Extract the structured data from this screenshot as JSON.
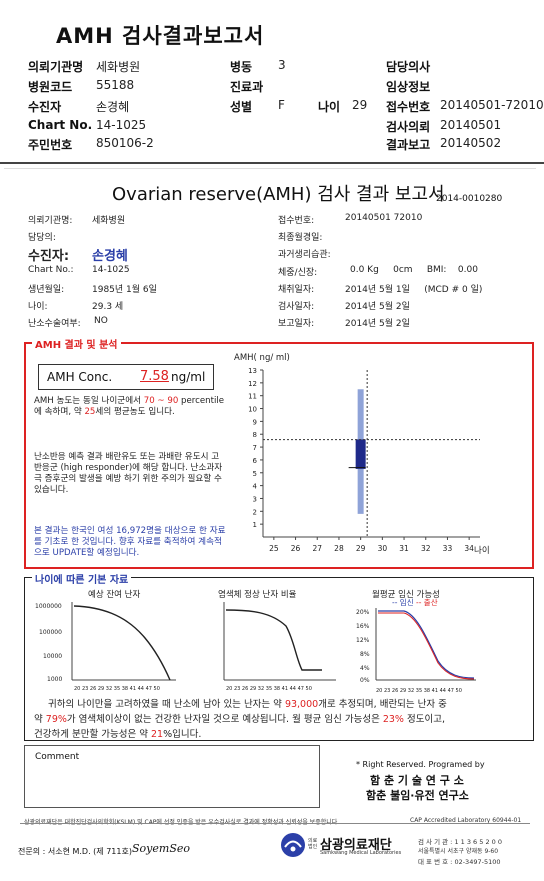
{
  "page_title": "AMH 검사결과보고서",
  "header": {
    "rows": [
      [
        {
          "label": "의뢰기관명",
          "value": "세화병원"
        },
        {
          "label": "병동",
          "value": "3"
        },
        {
          "label": "담당의사",
          "value": ""
        }
      ],
      [
        {
          "label": "병원코드",
          "value": "55188"
        },
        {
          "label": "진료과",
          "value": ""
        },
        {
          "label": "임상정보",
          "value": ""
        }
      ],
      [
        {
          "label": "수진자",
          "value": "손경혜"
        },
        {
          "label": "성별",
          "value": "F"
        },
        {
          "label": "나이",
          "value": "29"
        },
        {
          "label": "접수번호",
          "value": "20140501-72010"
        }
      ],
      [
        {
          "label": "Chart No.",
          "value": "14-1025"
        },
        {
          "label": "검사의뢰",
          "value": "20140501"
        }
      ],
      [
        {
          "label": "주민번호",
          "value": "850106-2"
        },
        {
          "label": "결과보고",
          "value": "20140502"
        }
      ]
    ]
  },
  "report": {
    "title": "Ovarian reserve(AMH) 검사 결과 보고서",
    "number": "2014-0010280",
    "left_info": [
      {
        "label": "의뢰기관명:",
        "value": "세화병원"
      },
      {
        "label": "담당의:",
        "value": ""
      },
      {
        "label": "수진자:",
        "value": "손경혜"
      },
      {
        "label": "Chart No.:",
        "value": "14-1025"
      },
      {
        "label": "생년월일:",
        "value": "1985년 1월 6일"
      },
      {
        "label": "나이:",
        "value": "29.3 세"
      },
      {
        "label": "난소수술여부:",
        "value": "NO"
      }
    ],
    "right_info": [
      {
        "label": "접수번호:",
        "value": "20140501 72010"
      },
      {
        "label": "최종월경일:",
        "value": ""
      },
      {
        "label": "과거생리습관:",
        "value": ""
      },
      {
        "label": "체중/신장:",
        "value": "0.0 Kg     0cm     BMI:    0.00"
      },
      {
        "label": "채취일자:",
        "value": "2014년 5월 1일     (MCD # 0 일)"
      },
      {
        "label": "검사일자:",
        "value": "2014년 5월 2일"
      },
      {
        "label": "보고일자:",
        "value": "2014년 5월 2일"
      }
    ]
  },
  "amh": {
    "section_title": "AMH 결과 및 분석",
    "conc_label": "AMH Conc.",
    "conc_value": "7.58",
    "conc_unit": "ng/ml",
    "p1_a": "AMH 농도는 동일 나이군에서",
    "p1_range": "70 ~ 90",
    "p1_b": "percentile에 속하며, 약",
    "p1_pct": "25",
    "p1_c": "세의 평균농도",
    "p1_d": "입니다.",
    "p2": "난소반응 예측 결과 배란유도 또는 과배란 유도시 고반응군 (high responder)에 해당 합니다. 난소과자극 증후군의 발생을 예방 하기 위한 주의가 필요할 수 있습니다.",
    "p3": "본 결과는 한국인 여성 16,972명을 대상으로 한 자료를 기초로 한 것입니다. 향후 자료를 축적하여 계속적으로 UPDATE할 예정입니다."
  },
  "chart_data": {
    "type": "box",
    "title": "",
    "ylabel": "AMH( ng/ ml)",
    "xlabel": "나이",
    "x_ticks": [
      25,
      26,
      27,
      28,
      29,
      30,
      31,
      32,
      33,
      34
    ],
    "y_ticks": [
      1,
      2,
      3,
      4,
      5,
      6,
      7,
      8,
      9,
      10,
      11,
      12,
      13
    ],
    "xlim": [
      24.5,
      34.5
    ],
    "ylim": [
      0,
      13
    ],
    "grid": false,
    "box": {
      "x": 29,
      "whisker_low": 1.8,
      "q1": 5.3,
      "median": 5.4,
      "q3": 7.6,
      "whisker_high": 11.5
    },
    "reference_value": 7.58,
    "reference_age": 29.3
  },
  "age_section": {
    "title": "나이에 따른 기본 자료",
    "chart1_title": "예상 잔여 난자",
    "chart1_yticks": [
      "1000000",
      "100000",
      "10000",
      "1000"
    ],
    "chart2_title": "염색체 정상 난자 비율",
    "chart3_title": "월평균 임신 가능성",
    "chart3_yticks": [
      "20%",
      "16%",
      "12%",
      "8%",
      "4%",
      "0%"
    ],
    "chart3_legend_a": "-- 임신",
    "chart3_legend_b": "-- 출산",
    "age_axis": "20 23 26 29 32 35 38 41 44 47 50",
    "summary_1a": "귀하의 나이만을 고려하였을 때 난소에 남아 있는 난자는 약",
    "summary_oocytes": "93,000",
    "summary_1b": "개로 추정되며, 배란되는 난자 중",
    "summary_2a": "약",
    "summary_2pct": "79%",
    "summary_2b": "가 염색체이상이 없는 건강한 난자일 것으로 예상됩니다. 월 평균 임신 가능성은",
    "summary_2c": "23%",
    "summary_2d": "정도이고,",
    "summary_3a": "건강하게 분만할 가능성은 약",
    "summary_3b": "21",
    "summary_3c": "%입니다."
  },
  "comment_label": "Comment",
  "rights": {
    "line1": "* Right Reserved. Programed by",
    "line2": "함 춘  기 술  연 구 소",
    "line3": "함춘 불임·유전 연구소"
  },
  "footer": {
    "cert_text": "삼광의료재단은 대한진단검사의학회(KSLM) 및 CAP에 선정 인증을 받은 우수검사실로 결과에 정확성과 신뢰성을 보증합니다.",
    "cap_text": "CAP Accredited Laboratory 60944-01",
    "doctor_label": "전문의 : 서소현 M.D. (제 711호)",
    "signature": "SoyemSeo",
    "org_prefix": "의료법인",
    "org_name": "삼광의료재단",
    "org_en": "Samkwang Medical Laboratories",
    "phone1": "검 사 기 관 : 1 1 3 6 5 2 0 0",
    "address": "서울특별시 서초구 양재동 9-60",
    "phone2": "대 표 번 호 : 02-3497-5100"
  }
}
